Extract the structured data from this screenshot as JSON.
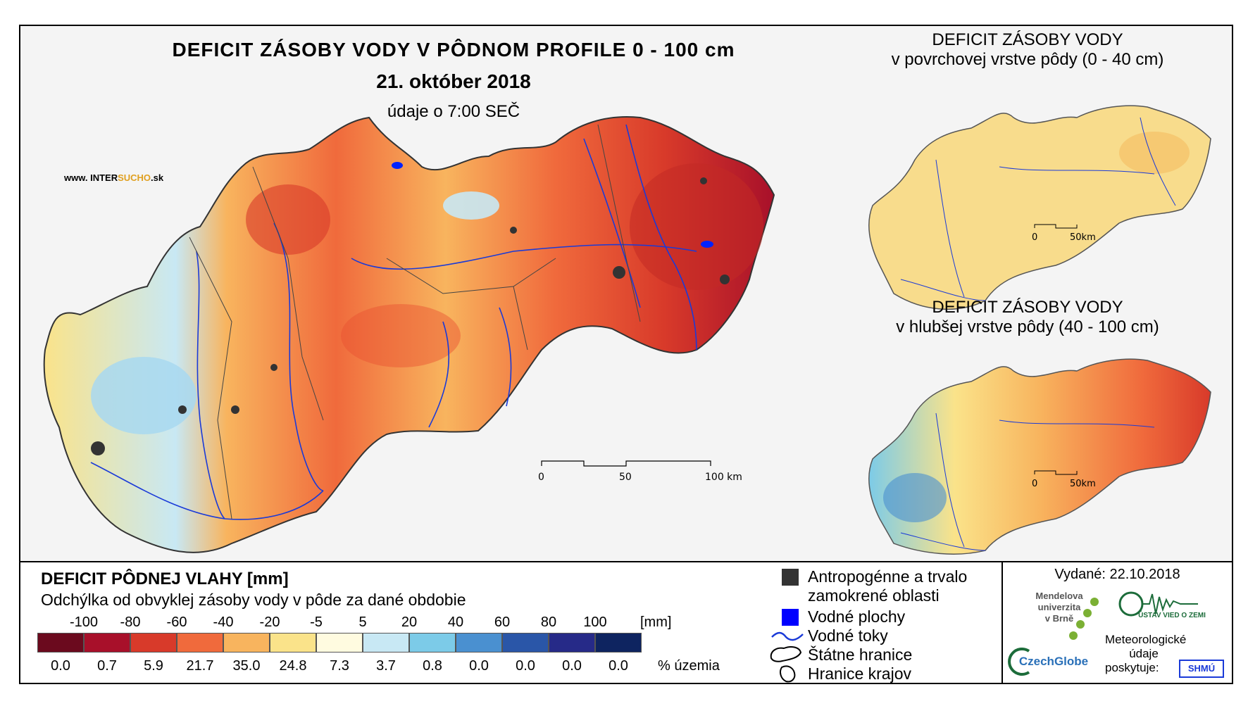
{
  "header": {
    "title": "DEFICIT ZÁSOBY VODY V PÔDNOM PROFILE 0 - 100 cm",
    "date": "21. október 2018",
    "time_note": "údaje o 7:00 SEČ",
    "website_prefix": "www. INTER",
    "website_brand": "SUCHO",
    "website_suffix": ".sk"
  },
  "main_map": {
    "scale_labels": [
      "0",
      "50",
      "100 km"
    ]
  },
  "inset_top": {
    "title_line1": "DEFICIT ZÁSOBY VODY",
    "title_line2": "v povrchovej vrstve pôdy (0 - 40 cm)",
    "scale_labels": [
      "0",
      "50km"
    ]
  },
  "inset_bottom": {
    "title_line1": "DEFICIT ZÁSOBY VODY",
    "title_line2": "v hlubšej vrstve pôdy (40 - 100 cm)",
    "scale_labels": [
      "0",
      "50km"
    ]
  },
  "legend": {
    "title": "DEFICIT PÔDNEJ VLAHY [mm]",
    "subtitle": "Odchýlka od obvyklej zásoby vody v pôde za dané obdobie",
    "class_labels": [
      "-100",
      "-80",
      "-60",
      "-40",
      "-20",
      "-5",
      "5",
      "20",
      "40",
      "60",
      "80",
      "100"
    ],
    "unit": "[mm]",
    "colors": [
      "#6b0a1e",
      "#a8102a",
      "#d83a2a",
      "#f06a3c",
      "#f8b45e",
      "#fae38a",
      "#fffbe0",
      "#c8e8f4",
      "#7ccbe8",
      "#4a90d0",
      "#2a56a8",
      "#262a88",
      "#0e2460"
    ],
    "percentages": [
      "0.0",
      "0.7",
      "5.9",
      "21.7",
      "35.0",
      "24.8",
      "7.3",
      "3.7",
      "0.8",
      "0.0",
      "0.0",
      "0.0",
      "0.0"
    ],
    "percent_unit": "% územia"
  },
  "symbols": {
    "anthropogenic_line1": "Antropogénne a trvalo",
    "anthropogenic_line2": "zamokrené oblasti",
    "water_bodies": "Vodné plochy",
    "rivers": "Vodné toky",
    "state_border": "Štátne hranice",
    "region_border": "Hranice krajov"
  },
  "credits": {
    "issued": "Vydané: 22.10.2018",
    "mendel_line1": "Mendelova",
    "mendel_line2": "univerzita",
    "mendel_line3": "v Brně",
    "czechglobe": "CzechGlobe",
    "uvgz": "ÚSTAV VIED O ZEMI",
    "meteo_line1": "Meteorologické",
    "meteo_line2": "údaje",
    "meteo_line3": "poskytuje:",
    "shmu": "SHMÚ"
  }
}
